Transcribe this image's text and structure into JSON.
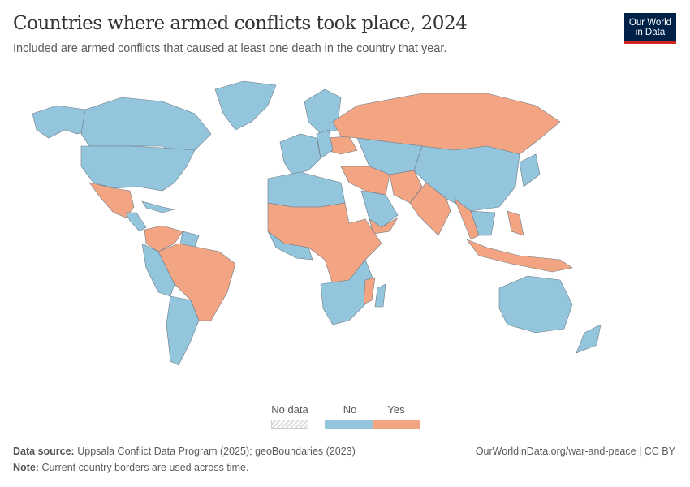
{
  "header": {
    "title": "Countries where armed conflicts took place, 2024",
    "subtitle": "Included are armed conflicts that caused at least one death in the country that year.",
    "logo_line1": "Our World",
    "logo_line2": "in Data"
  },
  "legend": {
    "no_data_label": "No data",
    "no_label": "No",
    "yes_label": "Yes"
  },
  "colors": {
    "no": "#93c5dd",
    "yes": "#f3a583",
    "no_data": "#e8e8e8",
    "border": "#6e7a85",
    "logo_bg": "#002147",
    "logo_accent": "#ce261e"
  },
  "footer": {
    "source_label": "Data source:",
    "source_text": "Uppsala Conflict Data Program (2025); geoBoundaries (2023)",
    "note_label": "Note:",
    "note_text": "Current country borders are used across time.",
    "link": "OurWorldinData.org/war-and-peace | CC BY"
  }
}
